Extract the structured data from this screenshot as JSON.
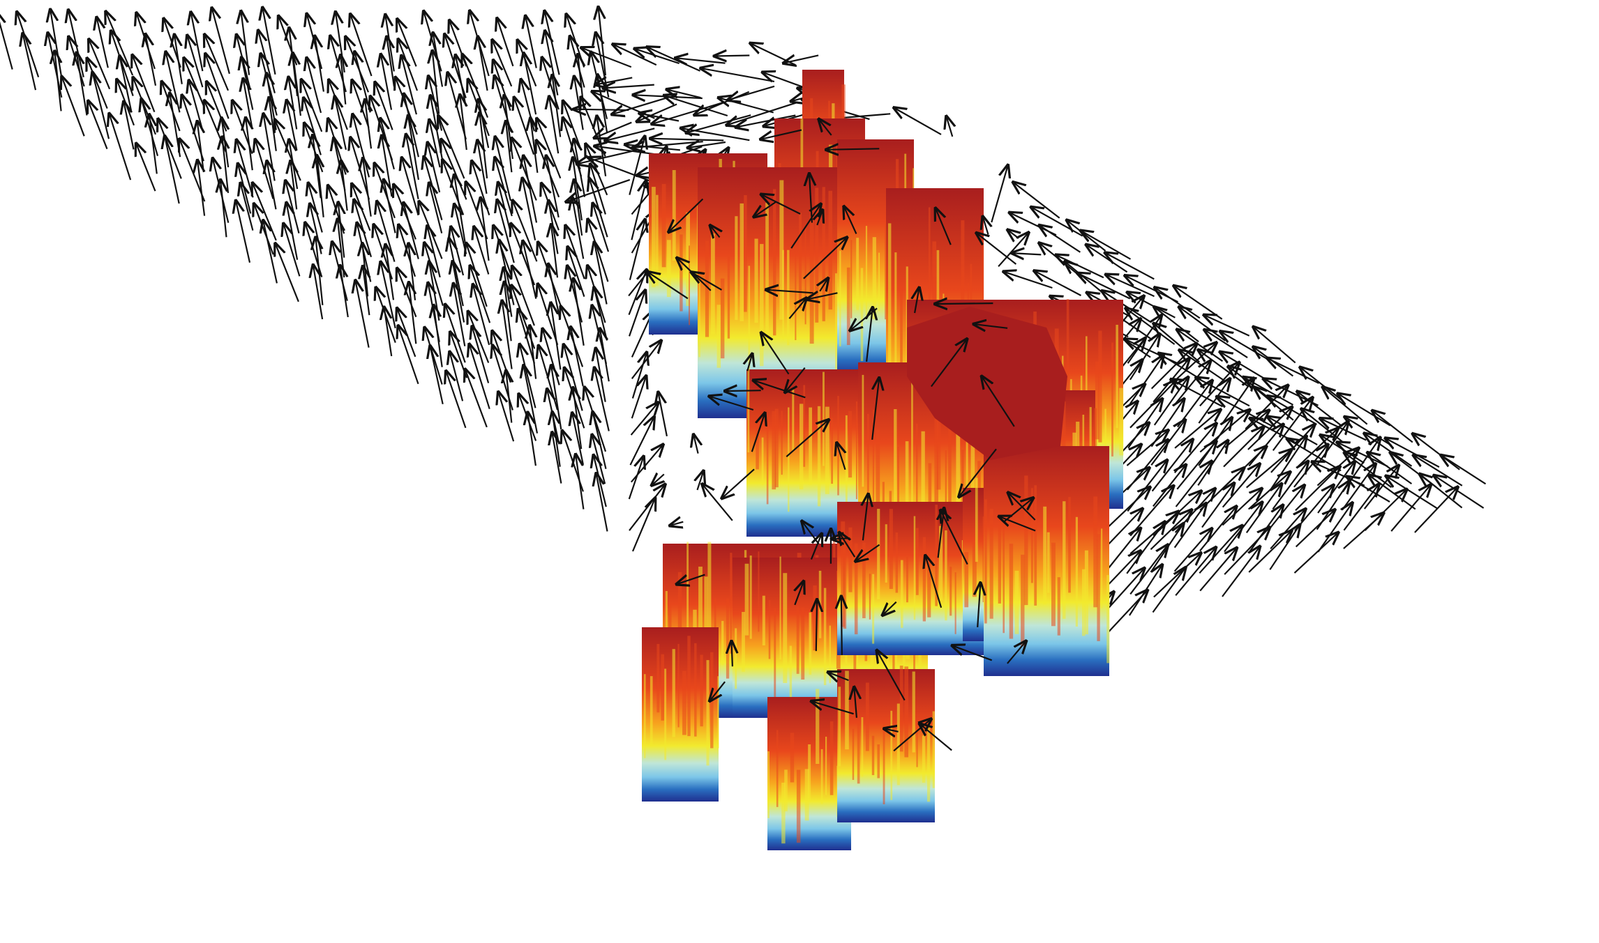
{
  "figure": {
    "description_visible_text": "",
    "surface_colormap": [
      "#1f2f8f",
      "#2a6fc0",
      "#7cc6e8",
      "#bfe6d8",
      "#f2ea2e",
      "#f7a21e",
      "#e8471c",
      "#c42a1e",
      "#a81e1e"
    ],
    "arrow_color": "#111111",
    "background": "#ffffff"
  }
}
